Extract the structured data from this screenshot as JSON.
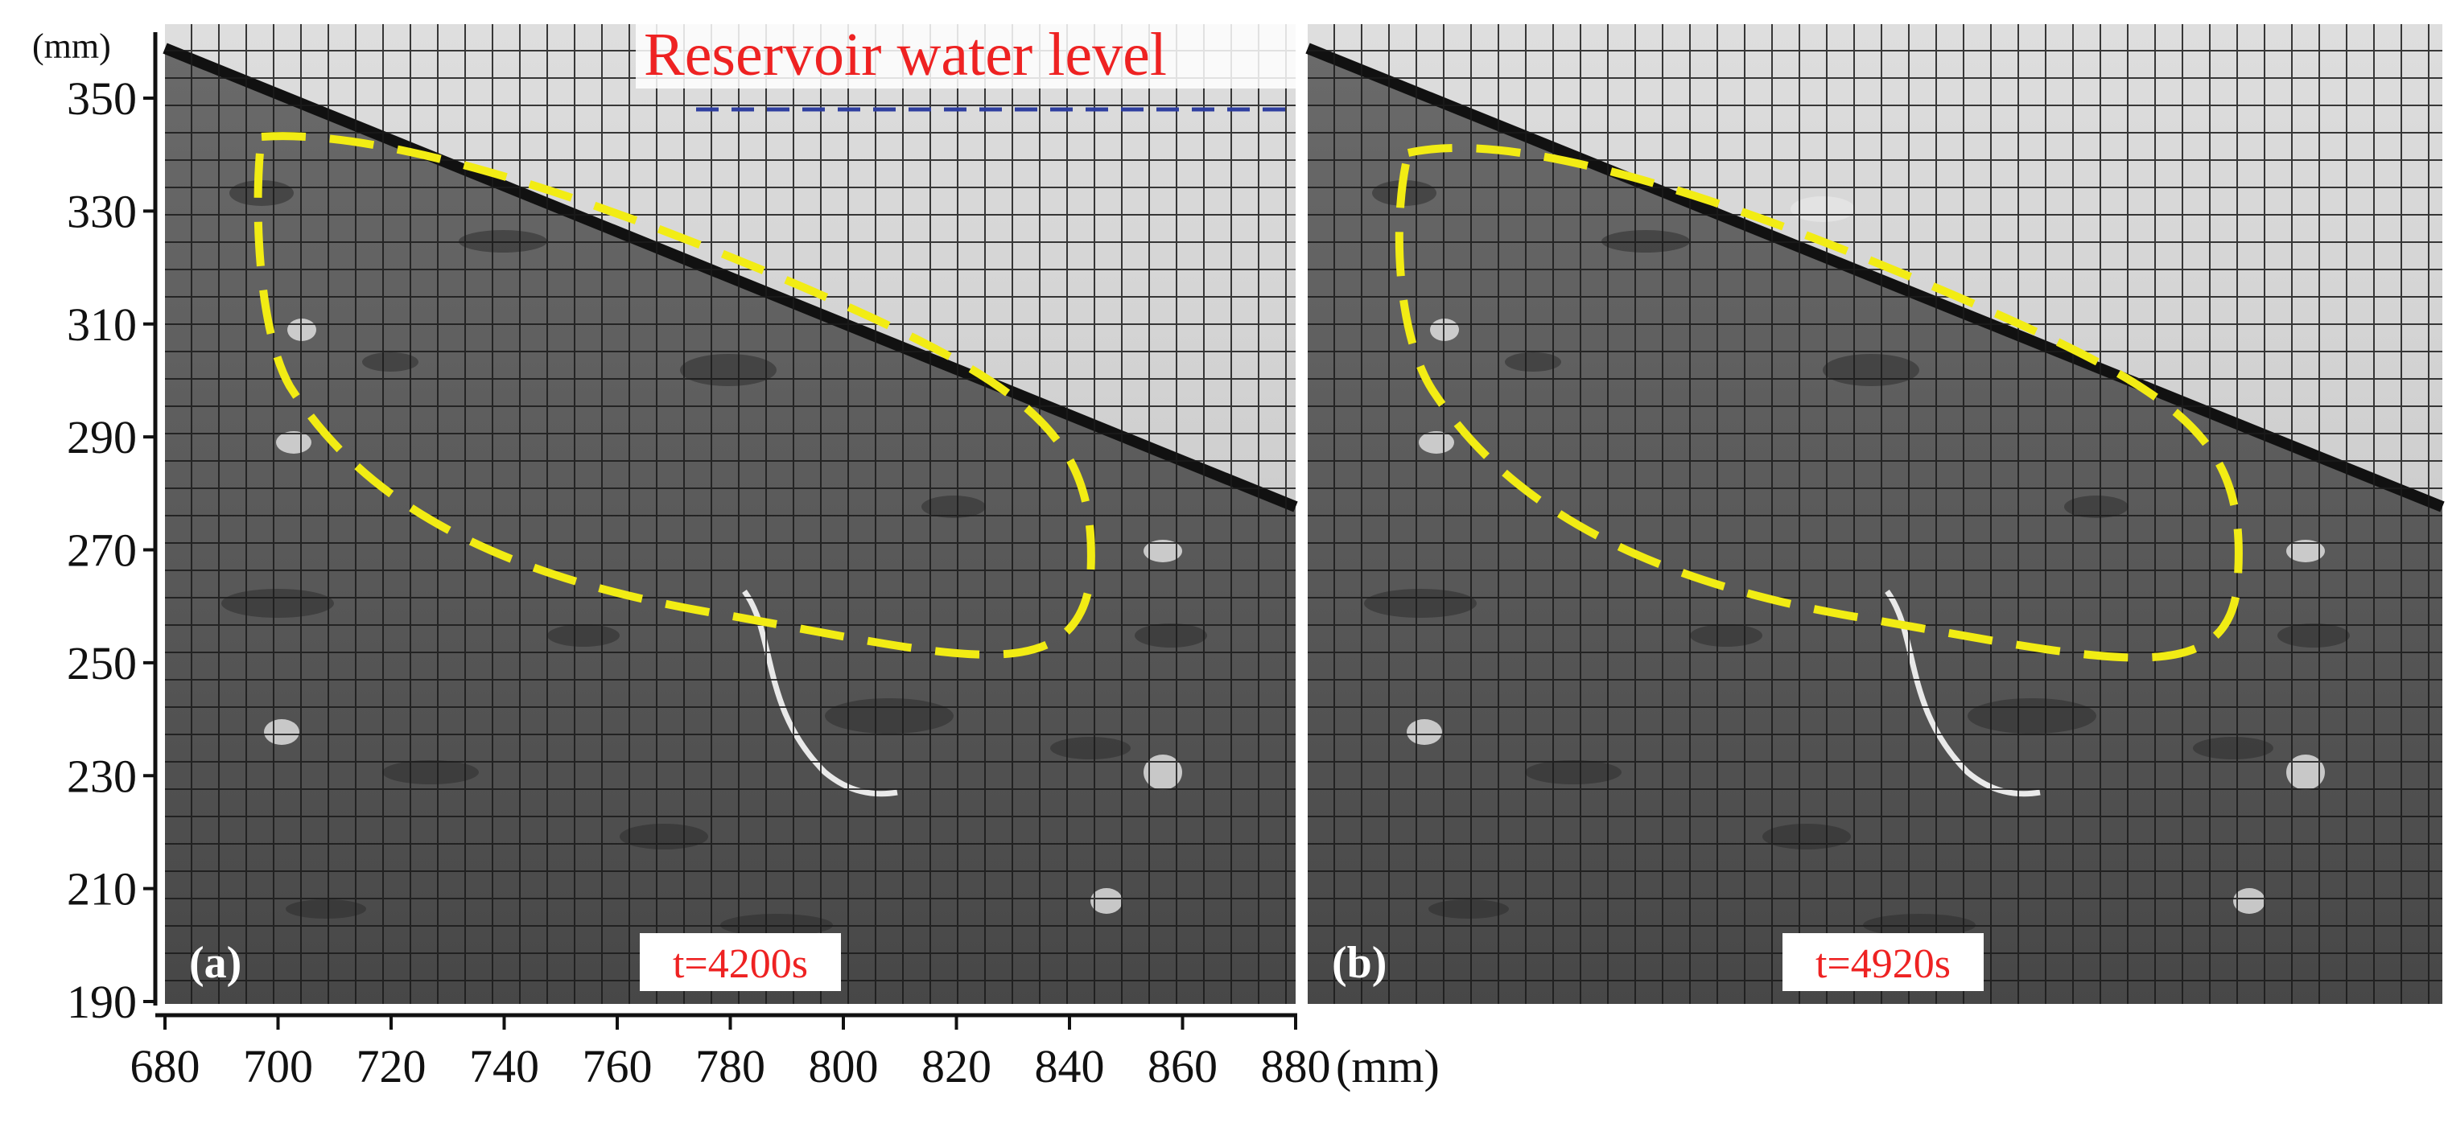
{
  "y_axis": {
    "unit_label": "(mm)",
    "ticks": [
      "350",
      "330",
      "310",
      "290",
      "270",
      "250",
      "230",
      "210",
      "190"
    ],
    "range": [
      190,
      355
    ]
  },
  "x_axis": {
    "unit_label": "(mm)",
    "ticks": [
      "680",
      "700",
      "720",
      "740",
      "760",
      "780",
      "800",
      "820",
      "840",
      "860",
      "880"
    ],
    "range": [
      680,
      880
    ]
  },
  "annotations": {
    "reservoir_label": "Reservoir water level",
    "reservoir_level_mm": 348
  },
  "panels": [
    {
      "id": "a",
      "label": "(a)",
      "time": "t=4200s"
    },
    {
      "id": "b",
      "label": "(b)",
      "time": "t=4920s"
    }
  ],
  "colors": {
    "outline": "#f2ec14",
    "water_line": "#2f3fa0",
    "label_red": "#ee2222",
    "soil": "#5c5c5c",
    "water_bg": "#c9c9c9"
  }
}
